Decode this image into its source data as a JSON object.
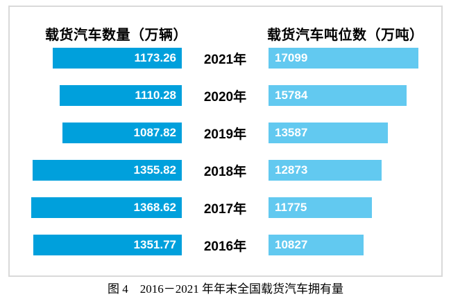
{
  "figure": {
    "left_header": "载货汽车数量（万辆）",
    "right_header": "载货汽车吨位数（万吨）",
    "caption": "图 4　2016－2021 年年末全国载货汽车拥有量"
  },
  "colors": {
    "left_bar": "#00A0DC",
    "right_bar": "#62C9F0",
    "value_text": "#FFFFFF",
    "label_text": "#000000",
    "frame_border": "#D9D9D9"
  },
  "chart_data": {
    "type": "bar",
    "subtype": "tornado-horizontal",
    "title": "图 4　2016－2021 年年末全国载货汽车拥有量",
    "categories": [
      "2021年",
      "2020年",
      "2019年",
      "2018年",
      "2017年",
      "2016年"
    ],
    "series": [
      {
        "name": "载货汽车数量（万辆）",
        "side": "left",
        "values": [
          1173.26,
          1110.28,
          1087.82,
          1355.82,
          1368.62,
          1351.77
        ],
        "value_format": "2-decimals",
        "axis_max": 1368.62
      },
      {
        "name": "载货汽车吨位数（万吨）",
        "side": "right",
        "values": [
          17099,
          15784,
          13587,
          12873,
          11775,
          10827
        ],
        "value_format": "integer",
        "axis_max": 17099
      }
    ],
    "value_labels": true,
    "legend_position": "column-headers",
    "grid": false
  }
}
